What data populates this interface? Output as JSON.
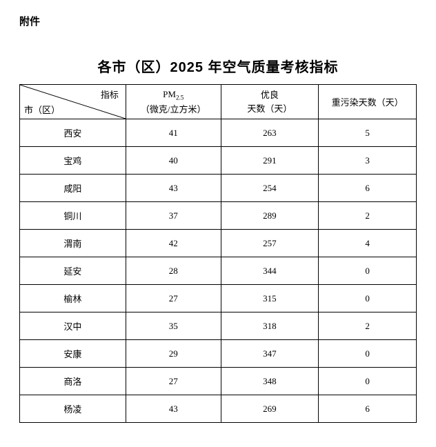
{
  "attachment_label": "附件",
  "title": "各市（区）2025 年空气质量考核指标",
  "header": {
    "diag_top": "指标",
    "diag_bottom": "市（区）",
    "pm_line1": "PM",
    "pm_sub": "2.5",
    "pm_line2": "（微克/立方米）",
    "good_line1": "优良",
    "good_line2": "天数（天）",
    "heavy": "重污染天数（天）"
  },
  "rows": [
    {
      "city": "西安",
      "pm": "41",
      "good": "263",
      "heavy": "5"
    },
    {
      "city": "宝鸡",
      "pm": "40",
      "good": "291",
      "heavy": "3"
    },
    {
      "city": "咸阳",
      "pm": "43",
      "good": "254",
      "heavy": "6"
    },
    {
      "city": "铜川",
      "pm": "37",
      "good": "289",
      "heavy": "2"
    },
    {
      "city": "渭南",
      "pm": "42",
      "good": "257",
      "heavy": "4"
    },
    {
      "city": "延安",
      "pm": "28",
      "good": "344",
      "heavy": "0"
    },
    {
      "city": "榆林",
      "pm": "27",
      "good": "315",
      "heavy": "0"
    },
    {
      "city": "汉中",
      "pm": "35",
      "good": "318",
      "heavy": "2"
    },
    {
      "city": "安康",
      "pm": "29",
      "good": "347",
      "heavy": "0"
    },
    {
      "city": "商洛",
      "pm": "27",
      "good": "348",
      "heavy": "0"
    },
    {
      "city": "杨凌",
      "pm": "43",
      "good": "269",
      "heavy": "6"
    }
  ],
  "colors": {
    "background": "#ffffff",
    "text": "#000000",
    "border": "#000000"
  }
}
